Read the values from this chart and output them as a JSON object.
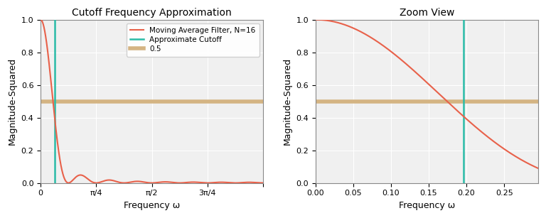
{
  "title_left": "Cutoff Frequency Approximation",
  "title_right": "Zoom View",
  "xlabel": "Frequency ω",
  "ylabel": "Magnitude-Squared",
  "N": 16,
  "cutoff_approx": 0.19634954084936207,
  "half_line_y": 0.5,
  "filter_color": "#E8614A",
  "cutoff_color": "#2ABBA7",
  "half_color": "#D4B483",
  "filter_linewidth": 1.5,
  "cutoff_linewidth": 1.8,
  "half_linewidth": 4.0,
  "legend_labels": [
    "Moving Average Filter, N=16",
    "Approximate Cutoff",
    "0.5"
  ],
  "xlim_left": [
    0,
    3.14159265
  ],
  "xlim_right": [
    0,
    0.295
  ],
  "ylim": [
    0.0,
    1.0
  ],
  "xticks_left": [
    0,
    0.7853981633974483,
    1.5707963267948966,
    2.356194490192345,
    3.14159265
  ],
  "xtick_labels_left": [
    "0",
    "π/4",
    "π/2",
    "3π/4",
    ""
  ],
  "background_color": "#f0f0f0",
  "grid_color": "white",
  "fig_background": "white"
}
